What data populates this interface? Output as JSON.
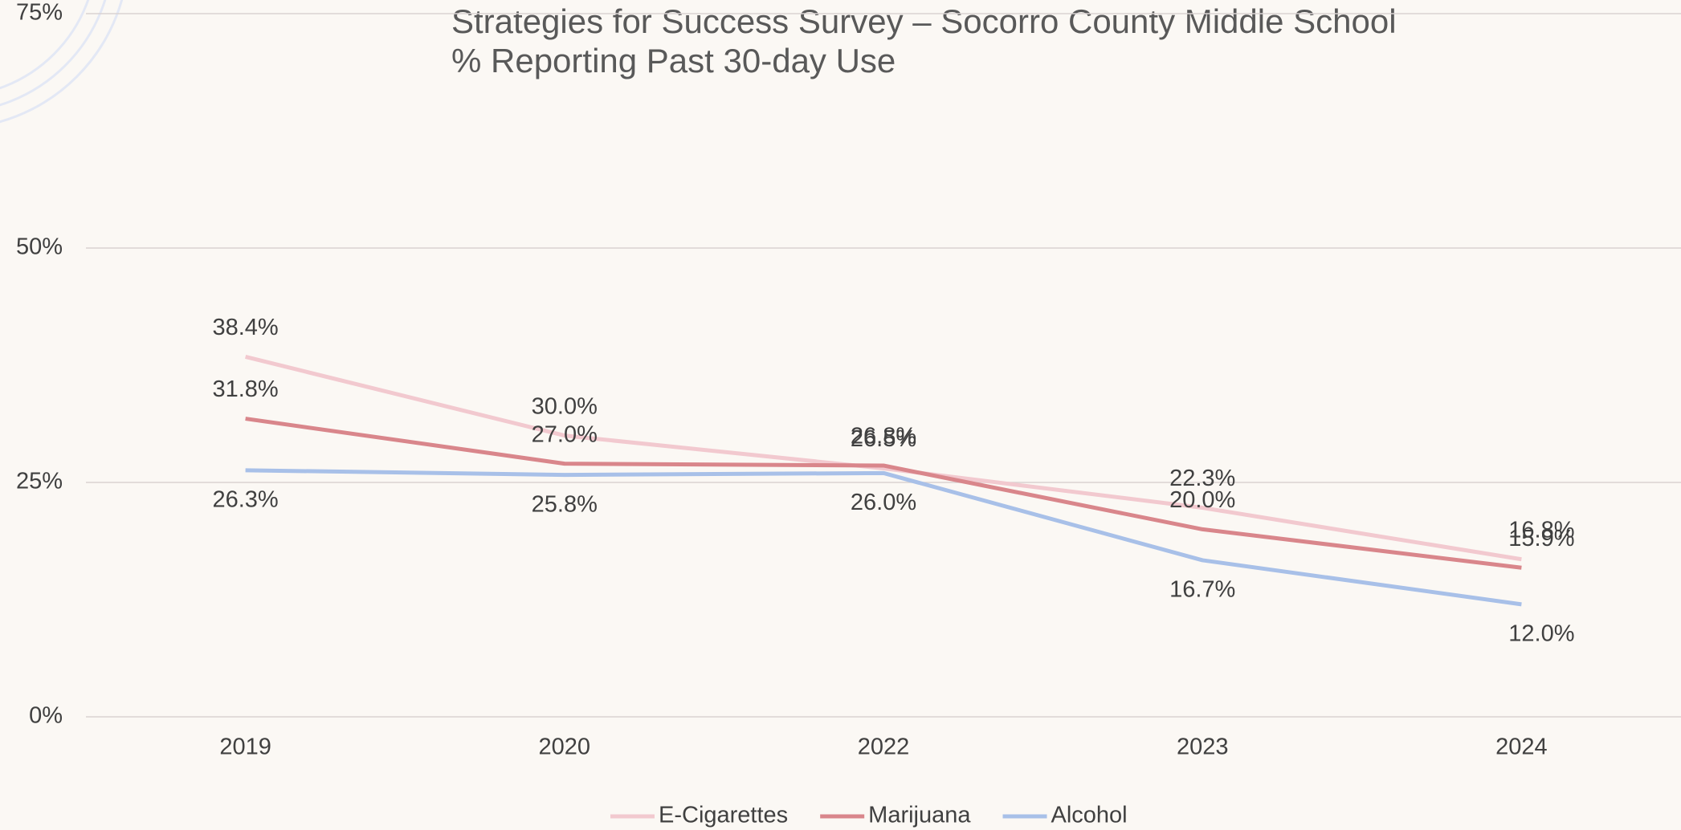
{
  "chart_data": {
    "type": "line",
    "title": "Strategies for Success Survey – Socorro County Middle School",
    "subtitle": "% Reporting Past 30-day Use",
    "categories": [
      "2019",
      "2020",
      "2022",
      "2023",
      "2024"
    ],
    "series": [
      {
        "name": "E-Cigarettes",
        "color": "#f2c9cf",
        "values": [
          38.4,
          30.0,
          26.5,
          22.3,
          16.8
        ],
        "value_labels": [
          "38.4%",
          "30.0%",
          "26.5%",
          "22.3%",
          "16.8%"
        ]
      },
      {
        "name": "Marijuana",
        "color": "#d9868b",
        "values": [
          31.8,
          27.0,
          26.8,
          20.0,
          15.9
        ],
        "value_labels": [
          "31.8%",
          "27.0%",
          "26.8%",
          "20.0%",
          "15.9%"
        ]
      },
      {
        "name": "Alcohol",
        "color": "#a8c0e8",
        "values": [
          26.3,
          25.8,
          26.0,
          16.7,
          12.0
        ],
        "value_labels": [
          "26.3%",
          "25.8%",
          "26.0%",
          "16.7%",
          "12.0%"
        ]
      }
    ],
    "ylim": [
      0,
      75
    ],
    "yticks": [
      {
        "value": 0,
        "label": "0%"
      },
      {
        "value": 25,
        "label": "25%"
      },
      {
        "value": 50,
        "label": "50%"
      },
      {
        "value": 75,
        "label": "75%"
      }
    ],
    "grid": true,
    "legend": "bottom"
  }
}
